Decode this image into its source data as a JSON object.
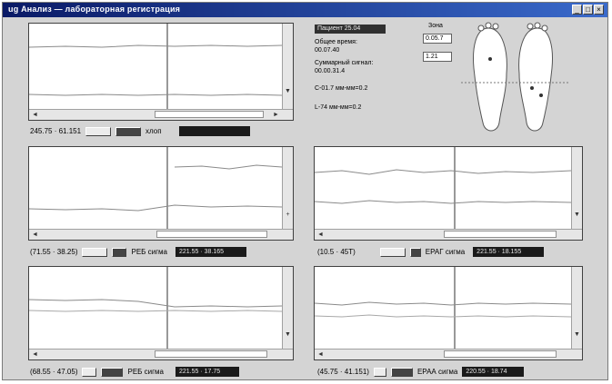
{
  "window": {
    "title": "ug Анализ — лабораторная регистрация",
    "controls": [
      "_",
      "□",
      "×"
    ]
  },
  "plots": [
    {
      "id": "p1",
      "status": {
        "range": "245.75 · 61.151",
        "btn1": "",
        "btn2": "",
        "label": "хлоп",
        "value": ""
      }
    },
    {
      "id": "p2",
      "status": {
        "range": "(71.55 · 38.25)",
        "btn1": "",
        "btn2": "",
        "label": "РЕБ сигма",
        "value": "221.55 · 38.165"
      }
    },
    {
      "id": "p3",
      "status": {
        "range": "(10.5 · 45Т)",
        "btn1": "",
        "btn2": "",
        "label": "ЕРАГ сигма",
        "value": "221.55 · 18.155"
      }
    },
    {
      "id": "p4",
      "status": {
        "range": "(68.55 · 47.05)",
        "btn1": "",
        "btn2": "",
        "label": "РЕБ сигма",
        "value": "221.55 · 17.75"
      }
    },
    {
      "id": "p5",
      "status": {
        "range": "(45.75 · 41.151)",
        "btn1": "",
        "btn2": "",
        "label": "ЕРАА сигма",
        "value": "220.55 · 18.74"
      }
    }
  ],
  "info": {
    "header": "Пациент 25.04",
    "line1": "Общее время:",
    "line2": "00.07.40",
    "line3": "Суммарный сигнал:",
    "line4": "00.00.31.4",
    "line5": "С-01.7   мм-мм=0.2",
    "line6": "L-74   мм-мм=0.2",
    "zone_label": "Зона",
    "field1": "0.05.7",
    "field2": "1.21"
  },
  "colors": {
    "title_bar": "#0a1a66",
    "panel": "#d4d4d4",
    "trace": "#8a8a8a"
  }
}
